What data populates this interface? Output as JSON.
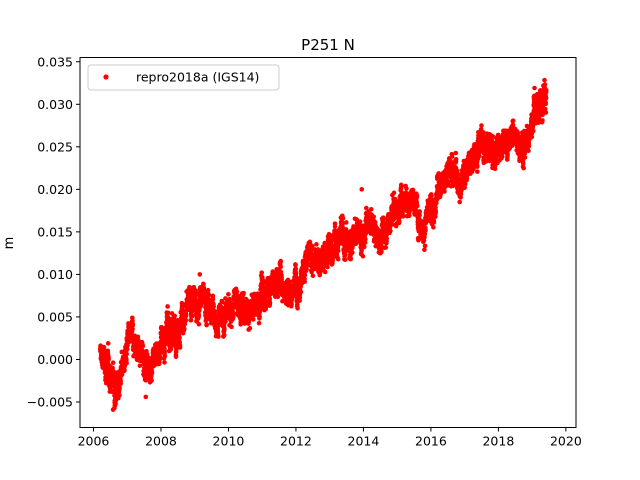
{
  "chart_data": {
    "type": "scatter",
    "title": "P251 N",
    "xlabel": "",
    "ylabel": "m",
    "xlim": [
      2005.6,
      2020.3
    ],
    "ylim": [
      -0.008,
      0.0355
    ],
    "xticks": [
      2006,
      2008,
      2010,
      2012,
      2014,
      2016,
      2018,
      2020
    ],
    "xtick_labels": [
      "2006",
      "2008",
      "2010",
      "2012",
      "2014",
      "2016",
      "2018",
      "2020"
    ],
    "yticks": [
      -0.005,
      0.0,
      0.005,
      0.01,
      0.015,
      0.02,
      0.025,
      0.03,
      0.035
    ],
    "ytick_labels": [
      "−0.005",
      "0.000",
      "0.005",
      "0.010",
      "0.015",
      "0.020",
      "0.025",
      "0.030",
      "0.035"
    ],
    "grid": false,
    "legend_position": "top-left",
    "series": [
      {
        "name": "repro2018a (IGS14)",
        "color": "#ff0000",
        "marker": "circle",
        "trend_knots": [
          [
            2006.2,
            0.0005
          ],
          [
            2006.4,
            -0.001
          ],
          [
            2006.6,
            -0.0025
          ],
          [
            2006.8,
            -0.0015
          ],
          [
            2007.0,
            0.001
          ],
          [
            2007.2,
            0.0025
          ],
          [
            2007.4,
            0.0005
          ],
          [
            2007.6,
            -0.0005
          ],
          [
            2007.8,
            0.0005
          ],
          [
            2008.0,
            0.002
          ],
          [
            2008.3,
            0.0035
          ],
          [
            2008.6,
            0.0045
          ],
          [
            2008.9,
            0.006
          ],
          [
            2009.2,
            0.007
          ],
          [
            2009.5,
            0.0055
          ],
          [
            2009.8,
            0.0045
          ],
          [
            2010.0,
            0.006
          ],
          [
            2010.3,
            0.0065
          ],
          [
            2010.6,
            0.005
          ],
          [
            2010.9,
            0.007
          ],
          [
            2011.2,
            0.0085
          ],
          [
            2011.5,
            0.0095
          ],
          [
            2011.8,
            0.008
          ],
          [
            2012.1,
            0.01
          ],
          [
            2012.4,
            0.012
          ],
          [
            2012.7,
            0.011
          ],
          [
            2013.0,
            0.013
          ],
          [
            2013.3,
            0.0145
          ],
          [
            2013.6,
            0.014
          ],
          [
            2013.9,
            0.015
          ],
          [
            2014.2,
            0.0155
          ],
          [
            2014.5,
            0.0145
          ],
          [
            2014.8,
            0.017
          ],
          [
            2015.1,
            0.0185
          ],
          [
            2015.3,
            0.02
          ],
          [
            2015.5,
            0.018
          ],
          [
            2015.8,
            0.016
          ],
          [
            2016.1,
            0.0175
          ],
          [
            2016.3,
            0.0215
          ],
          [
            2016.6,
            0.0225
          ],
          [
            2016.9,
            0.021
          ],
          [
            2017.2,
            0.024
          ],
          [
            2017.5,
            0.026
          ],
          [
            2017.8,
            0.024
          ],
          [
            2018.1,
            0.0255
          ],
          [
            2018.4,
            0.027
          ],
          [
            2018.7,
            0.025
          ],
          [
            2019.0,
            0.028
          ],
          [
            2019.2,
            0.0305
          ],
          [
            2019.42,
            0.032
          ]
        ],
        "outliers": [
          [
            2006.58,
            -0.0059
          ],
          [
            2006.62,
            -0.0057
          ],
          [
            2007.55,
            -0.0044
          ],
          [
            2009.15,
            0.01
          ],
          [
            2013.95,
            0.02
          ],
          [
            2018.75,
            0.0225
          ]
        ]
      }
    ]
  }
}
